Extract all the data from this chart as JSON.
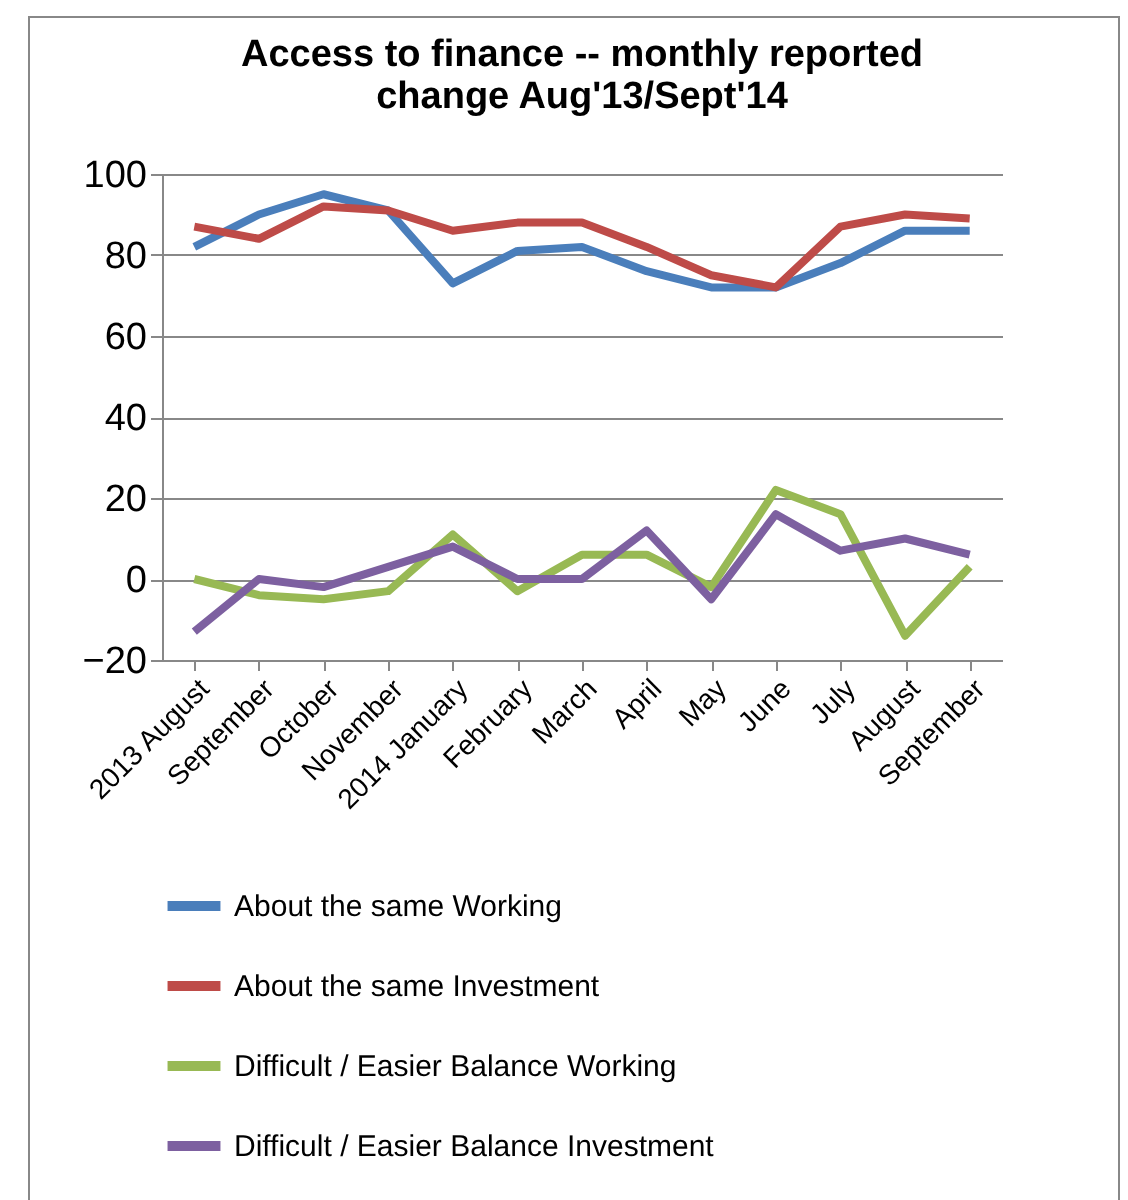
{
  "chart_data": {
    "type": "line",
    "title": [
      "Access to finance -- monthly reported",
      "change Aug'13/Sept'14"
    ],
    "categories": [
      "2013 August",
      "September",
      "October",
      "November",
      "2014 January",
      "February",
      "March",
      "April",
      "May",
      "June",
      "July",
      "August",
      "September"
    ],
    "series": [
      {
        "name": "About the same Working",
        "color": "#4a7ebb",
        "values": [
          82,
          90,
          95,
          91,
          73,
          81,
          82,
          76,
          72,
          72,
          78,
          86,
          86
        ]
      },
      {
        "name": "About the same Investment",
        "color": "#be4b48",
        "values": [
          87,
          84,
          92,
          91,
          86,
          88,
          88,
          82,
          75,
          72,
          87,
          90,
          89
        ]
      },
      {
        "name": "Difficult / Easier Balance Working",
        "color": "#98b954",
        "values": [
          0,
          -4,
          -5,
          -3,
          11,
          -3,
          6,
          6,
          -2,
          22,
          16,
          -14,
          3
        ]
      },
      {
        "name": "Difficult / Easier Balance Investment",
        "color": "#7d60a0",
        "values": [
          -13,
          0,
          -2,
          3,
          8,
          0,
          0,
          12,
          -5,
          16,
          7,
          10,
          6
        ]
      }
    ],
    "ylim": [
      -20,
      100
    ],
    "yticks": [
      -20,
      0,
      20,
      40,
      60,
      80,
      100
    ],
    "grid": "y",
    "legend": "bottom",
    "marker": "none",
    "line_style": "solid"
  }
}
